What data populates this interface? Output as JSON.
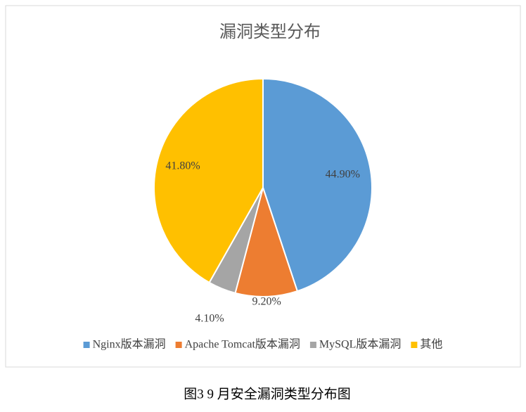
{
  "chart_data": {
    "type": "pie",
    "title": "漏洞类型分布",
    "categories": [
      "Nginx版本漏洞",
      "Apache Tomcat版本漏洞",
      "MySQL版本漏洞",
      "其他"
    ],
    "values": [
      44.9,
      9.2,
      4.1,
      41.8
    ],
    "value_labels": [
      "44.90%",
      "9.20%",
      "4.10%",
      "41.80%"
    ],
    "colors": [
      "#5b9bd5",
      "#ed7d31",
      "#a5a5a5",
      "#ffc000"
    ],
    "legend": "bottom",
    "caption": "图3   9 月安全漏洞类型分布图"
  }
}
